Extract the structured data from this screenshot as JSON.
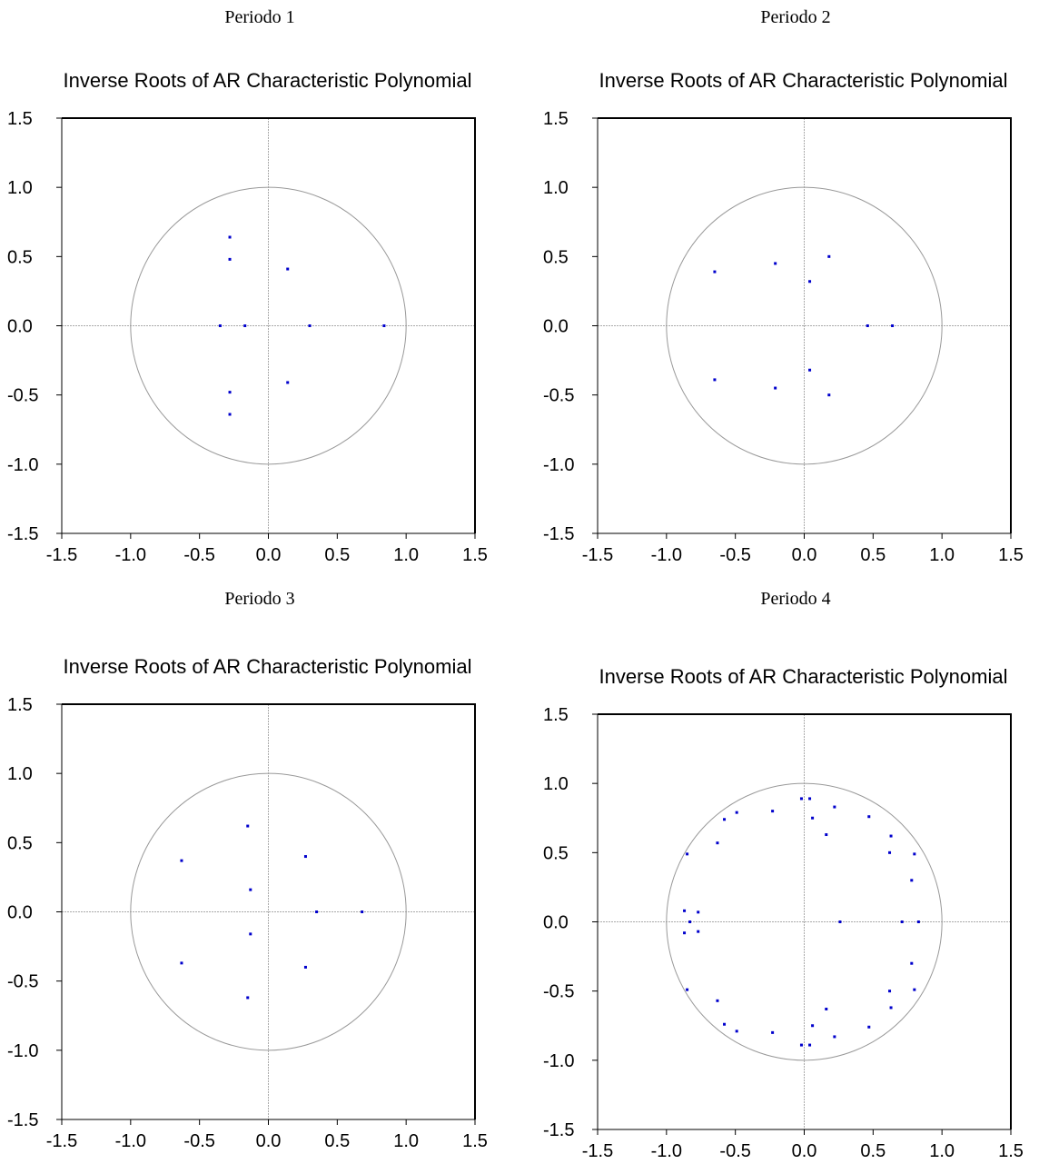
{
  "colors": {
    "point": "#0000cc",
    "circle": "#999999",
    "axis_line": "#aaaaaa",
    "frame": "#000000"
  },
  "chart_data": [
    {
      "type": "scatter",
      "panel_label": "Periodo 1",
      "title": "Inverse Roots of AR Characteristic Polynomial",
      "xlim": [
        -1.5,
        1.5
      ],
      "ylim": [
        -1.5,
        1.5
      ],
      "xticks": [
        "-1.5",
        "-1.0",
        "-0.5",
        "0.0",
        "0.5",
        "1.0",
        "1.5"
      ],
      "yticks": [
        "1.5",
        "1.0",
        "0.5",
        "0.0",
        "-0.5",
        "-1.0",
        "-1.5"
      ],
      "unit_circle": true,
      "points": [
        {
          "x": -0.28,
          "y": 0.64
        },
        {
          "x": -0.28,
          "y": -0.64
        },
        {
          "x": -0.28,
          "y": 0.48
        },
        {
          "x": -0.28,
          "y": -0.48
        },
        {
          "x": 0.14,
          "y": 0.41
        },
        {
          "x": 0.14,
          "y": -0.41
        },
        {
          "x": -0.35,
          "y": 0.0
        },
        {
          "x": -0.17,
          "y": 0.0
        },
        {
          "x": 0.3,
          "y": 0.0
        },
        {
          "x": 0.84,
          "y": 0.0
        }
      ]
    },
    {
      "type": "scatter",
      "panel_label": "Periodo 2",
      "title": "Inverse Roots of AR Characteristic Polynomial",
      "xlim": [
        -1.5,
        1.5
      ],
      "ylim": [
        -1.5,
        1.5
      ],
      "xticks": [
        "-1.5",
        "-1.0",
        "-0.5",
        "0.0",
        "0.5",
        "1.0",
        "1.5"
      ],
      "yticks": [
        "1.5",
        "1.0",
        "0.5",
        "0.0",
        "-0.5",
        "-1.0",
        "-1.5"
      ],
      "unit_circle": true,
      "points": [
        {
          "x": -0.65,
          "y": 0.39
        },
        {
          "x": -0.65,
          "y": -0.39
        },
        {
          "x": -0.21,
          "y": 0.45
        },
        {
          "x": -0.21,
          "y": -0.45
        },
        {
          "x": 0.18,
          "y": 0.5
        },
        {
          "x": 0.18,
          "y": -0.5
        },
        {
          "x": 0.04,
          "y": 0.32
        },
        {
          "x": 0.04,
          "y": -0.32
        },
        {
          "x": 0.46,
          "y": 0.0
        },
        {
          "x": 0.64,
          "y": 0.0
        }
      ]
    },
    {
      "type": "scatter",
      "panel_label": "Periodo 3",
      "title": "Inverse Roots of AR Characteristic Polynomial",
      "xlim": [
        -1.5,
        1.5
      ],
      "ylim": [
        -1.5,
        1.5
      ],
      "xticks": [
        "-1.5",
        "-1.0",
        "-0.5",
        "0.0",
        "0.5",
        "1.0",
        "1.5"
      ],
      "yticks": [
        "1.5",
        "1.0",
        "0.5",
        "0.0",
        "-0.5",
        "-1.0",
        "-1.5"
      ],
      "unit_circle": true,
      "points": [
        {
          "x": -0.63,
          "y": 0.37
        },
        {
          "x": -0.63,
          "y": -0.37
        },
        {
          "x": -0.15,
          "y": 0.62
        },
        {
          "x": -0.15,
          "y": -0.62
        },
        {
          "x": -0.13,
          "y": 0.16
        },
        {
          "x": -0.13,
          "y": -0.16
        },
        {
          "x": 0.27,
          "y": 0.4
        },
        {
          "x": 0.27,
          "y": -0.4
        },
        {
          "x": 0.35,
          "y": 0.0
        },
        {
          "x": 0.68,
          "y": 0.0
        }
      ]
    },
    {
      "type": "scatter",
      "panel_label": "Periodo 4",
      "title": "Inverse Roots of AR Characteristic Polynomial",
      "xlim": [
        -1.5,
        1.5
      ],
      "ylim": [
        -1.5,
        1.5
      ],
      "xticks": [
        "-1.5",
        "-1.0",
        "-0.5",
        "0.0",
        "0.5",
        "1.0",
        "1.5"
      ],
      "yticks": [
        "1.5",
        "1.0",
        "0.5",
        "0.0",
        "-0.5",
        "-1.0",
        "-1.5"
      ],
      "unit_circle": true,
      "points": [
        {
          "x": -0.02,
          "y": 0.89
        },
        {
          "x": -0.02,
          "y": -0.89
        },
        {
          "x": 0.04,
          "y": 0.89
        },
        {
          "x": 0.04,
          "y": -0.89
        },
        {
          "x": -0.23,
          "y": 0.8
        },
        {
          "x": -0.23,
          "y": -0.8
        },
        {
          "x": 0.22,
          "y": 0.83
        },
        {
          "x": 0.22,
          "y": -0.83
        },
        {
          "x": -0.49,
          "y": 0.79
        },
        {
          "x": -0.49,
          "y": -0.79
        },
        {
          "x": -0.58,
          "y": 0.74
        },
        {
          "x": -0.58,
          "y": -0.74
        },
        {
          "x": 0.47,
          "y": 0.76
        },
        {
          "x": 0.47,
          "y": -0.76
        },
        {
          "x": 0.06,
          "y": 0.75
        },
        {
          "x": 0.06,
          "y": -0.75
        },
        {
          "x": 0.16,
          "y": 0.63
        },
        {
          "x": 0.16,
          "y": -0.63
        },
        {
          "x": 0.63,
          "y": 0.62
        },
        {
          "x": 0.63,
          "y": -0.62
        },
        {
          "x": -0.63,
          "y": 0.57
        },
        {
          "x": -0.63,
          "y": -0.57
        },
        {
          "x": 0.62,
          "y": 0.5
        },
        {
          "x": 0.62,
          "y": -0.5
        },
        {
          "x": -0.85,
          "y": 0.49
        },
        {
          "x": -0.85,
          "y": -0.49
        },
        {
          "x": 0.8,
          "y": 0.49
        },
        {
          "x": 0.8,
          "y": -0.49
        },
        {
          "x": 0.78,
          "y": 0.3
        },
        {
          "x": 0.78,
          "y": -0.3
        },
        {
          "x": -0.87,
          "y": 0.08
        },
        {
          "x": -0.87,
          "y": -0.08
        },
        {
          "x": -0.77,
          "y": 0.07
        },
        {
          "x": -0.77,
          "y": -0.07
        },
        {
          "x": -0.83,
          "y": 0.0
        },
        {
          "x": 0.26,
          "y": 0.0
        },
        {
          "x": 0.71,
          "y": 0.0
        },
        {
          "x": 0.83,
          "y": 0.0
        }
      ]
    }
  ]
}
